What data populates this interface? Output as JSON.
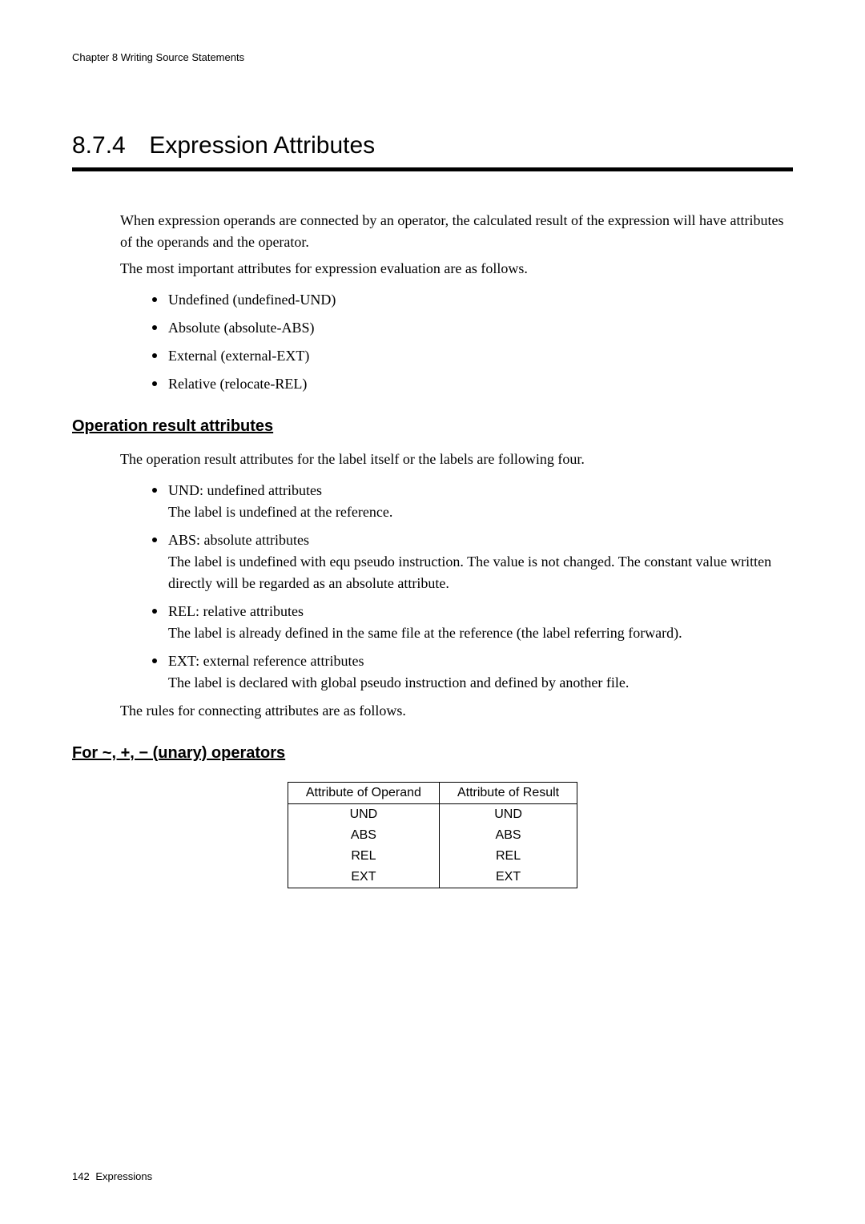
{
  "header": {
    "chapter": "Chapter  8   Writing Source Statements"
  },
  "section": {
    "number": "8.7.4",
    "title": "Expression Attributes"
  },
  "intro": {
    "p1": "When expression operands are connected by an operator, the calculated result of the expression will have attributes of the operands and the operator.",
    "p2": "The most important attributes for expression evaluation are as follows."
  },
  "attribute_list": [
    "Undefined (undefined-UND)",
    "Absolute (absolute-ABS)",
    "External (external-EXT)",
    "Relative (relocate-REL)"
  ],
  "operation_section": {
    "heading": "Operation result attributes",
    "intro": "The operation result attributes for the label itself or the labels are following four.",
    "items": [
      {
        "head": "UND: undefined attributes",
        "desc": "The label is undefined at the reference."
      },
      {
        "head": "ABS: absolute attributes",
        "desc": "The label is undefined with equ pseudo instruction. The value is not changed. The constant value written directly will be regarded as an absolute attribute."
      },
      {
        "head": "REL: relative attributes",
        "desc": "The label is already defined in the same file at the reference (the label referring forward)."
      },
      {
        "head": "EXT: external reference attributes",
        "desc": "The label is declared with global pseudo instruction and defined by another file."
      }
    ],
    "rules_line": "The rules for connecting attributes are as follows."
  },
  "unary_section": {
    "heading": "For ~, +, − (unary) operators",
    "table": {
      "columns": [
        "Attribute of Operand",
        "Attribute of Result"
      ],
      "rows": [
        [
          "UND",
          "UND"
        ],
        [
          "ABS",
          "ABS"
        ],
        [
          "REL",
          "REL"
        ],
        [
          "EXT",
          "EXT"
        ]
      ]
    }
  },
  "footer": {
    "page": "142",
    "label": "Expressions"
  }
}
